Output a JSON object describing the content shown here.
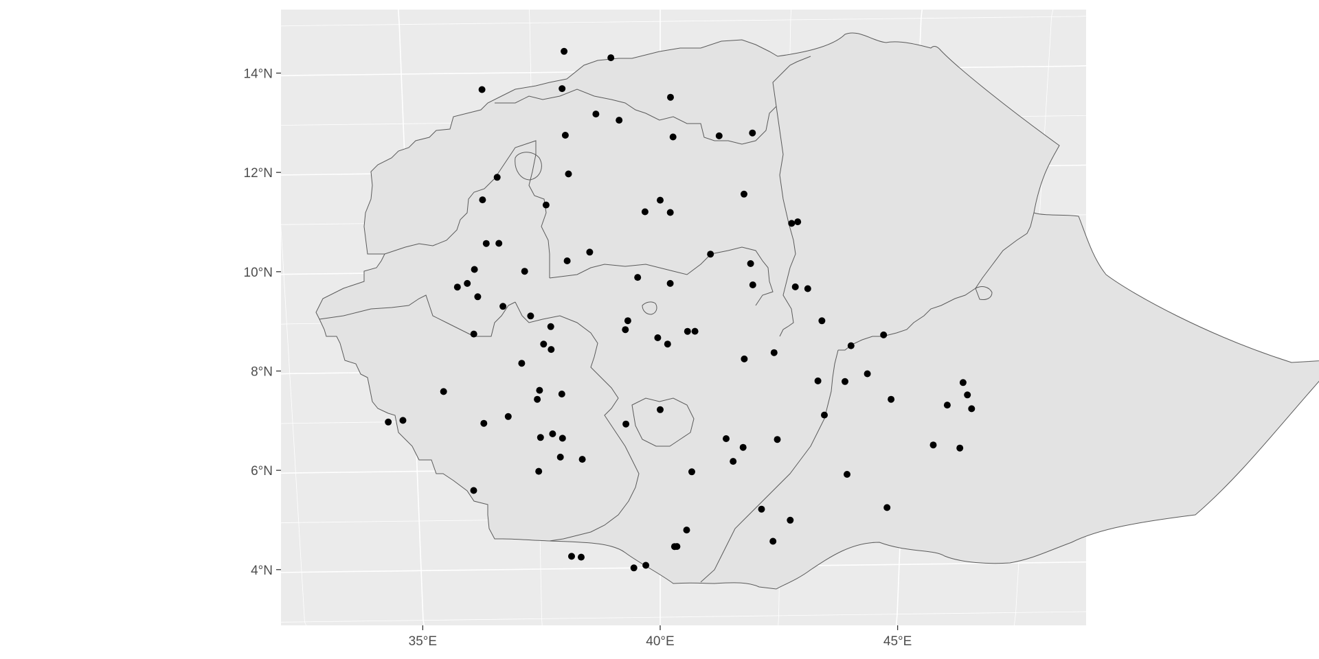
{
  "map": {
    "region": "Ethiopia",
    "projection": "conic, graticule curved",
    "panel_background": "#ebebeb",
    "grid_color": "#ffffff",
    "land_fill": "#e3e3e3",
    "border_color": "#595959",
    "point_color": "#000000",
    "grid_lines": true,
    "legend": "none"
  },
  "axes": {
    "x_ticks": [
      {
        "value": 35,
        "label": "35°E"
      },
      {
        "value": 40,
        "label": "40°E"
      },
      {
        "value": 45,
        "label": "45°E"
      }
    ],
    "y_ticks": [
      {
        "value": 4,
        "label": "4°N"
      },
      {
        "value": 6,
        "label": "6°N"
      },
      {
        "value": 8,
        "label": "8°N"
      },
      {
        "value": 10,
        "label": "10°N"
      },
      {
        "value": 12,
        "label": "12°N"
      },
      {
        "value": 14,
        "label": "14°N"
      }
    ],
    "xlim": [
      32.3,
      48.5
    ],
    "ylim": [
      3.0,
      15.3
    ]
  },
  "chart_data": {
    "type": "scatter",
    "title": "",
    "xlabel": "",
    "ylabel": "",
    "points": [
      {
        "lon": 38.15,
        "lat": 14.42
      },
      {
        "lon": 39.05,
        "lat": 14.28
      },
      {
        "lon": 36.55,
        "lat": 13.67
      },
      {
        "lon": 38.1,
        "lat": 13.67
      },
      {
        "lon": 40.2,
        "lat": 13.47
      },
      {
        "lon": 38.75,
        "lat": 13.15
      },
      {
        "lon": 39.2,
        "lat": 13.02
      },
      {
        "lon": 38.15,
        "lat": 12.73
      },
      {
        "lon": 40.25,
        "lat": 12.67
      },
      {
        "lon": 41.15,
        "lat": 12.68
      },
      {
        "lon": 41.8,
        "lat": 12.73
      },
      {
        "lon": 36.8,
        "lat": 11.9
      },
      {
        "lon": 38.2,
        "lat": 11.95
      },
      {
        "lon": 41.65,
        "lat": 11.5
      },
      {
        "lon": 36.5,
        "lat": 11.45
      },
      {
        "lon": 37.75,
        "lat": 11.33
      },
      {
        "lon": 40.0,
        "lat": 11.4
      },
      {
        "lon": 39.7,
        "lat": 11.17
      },
      {
        "lon": 40.2,
        "lat": 11.15
      },
      {
        "lon": 42.6,
        "lat": 10.9
      },
      {
        "lon": 42.72,
        "lat": 10.93
      },
      {
        "lon": 36.55,
        "lat": 10.57
      },
      {
        "lon": 36.8,
        "lat": 10.57
      },
      {
        "lon": 38.6,
        "lat": 10.37
      },
      {
        "lon": 41.0,
        "lat": 10.3
      },
      {
        "lon": 38.15,
        "lat": 10.2
      },
      {
        "lon": 41.8,
        "lat": 10.1
      },
      {
        "lon": 36.3,
        "lat": 10.05
      },
      {
        "lon": 37.3,
        "lat": 10.0
      },
      {
        "lon": 39.55,
        "lat": 9.85
      },
      {
        "lon": 36.15,
        "lat": 9.77
      },
      {
        "lon": 35.95,
        "lat": 9.7
      },
      {
        "lon": 40.2,
        "lat": 9.72
      },
      {
        "lon": 41.85,
        "lat": 9.67
      },
      {
        "lon": 42.7,
        "lat": 9.62
      },
      {
        "lon": 42.95,
        "lat": 9.58
      },
      {
        "lon": 36.35,
        "lat": 9.5
      },
      {
        "lon": 36.85,
        "lat": 9.3
      },
      {
        "lon": 37.4,
        "lat": 9.1
      },
      {
        "lon": 39.35,
        "lat": 8.98
      },
      {
        "lon": 43.25,
        "lat": 8.93
      },
      {
        "lon": 37.8,
        "lat": 8.88
      },
      {
        "lon": 39.3,
        "lat": 8.8
      },
      {
        "lon": 36.25,
        "lat": 8.75
      },
      {
        "lon": 40.55,
        "lat": 8.75
      },
      {
        "lon": 40.7,
        "lat": 8.75
      },
      {
        "lon": 39.95,
        "lat": 8.63
      },
      {
        "lon": 44.5,
        "lat": 8.63
      },
      {
        "lon": 37.65,
        "lat": 8.53
      },
      {
        "lon": 40.15,
        "lat": 8.5
      },
      {
        "lon": 37.8,
        "lat": 8.42
      },
      {
        "lon": 43.85,
        "lat": 8.42
      },
      {
        "lon": 42.3,
        "lat": 8.3
      },
      {
        "lon": 37.2,
        "lat": 8.15
      },
      {
        "lon": 41.7,
        "lat": 8.18
      },
      {
        "lon": 44.2,
        "lat": 7.85
      },
      {
        "lon": 43.2,
        "lat": 7.72
      },
      {
        "lon": 43.75,
        "lat": 7.7
      },
      {
        "lon": 46.15,
        "lat": 7.65
      },
      {
        "lon": 35.6,
        "lat": 7.6
      },
      {
        "lon": 37.55,
        "lat": 7.6
      },
      {
        "lon": 38.0,
        "lat": 7.52
      },
      {
        "lon": 37.5,
        "lat": 7.42
      },
      {
        "lon": 46.25,
        "lat": 7.4
      },
      {
        "lon": 44.7,
        "lat": 7.33
      },
      {
        "lon": 45.85,
        "lat": 7.2
      },
      {
        "lon": 40.0,
        "lat": 7.18
      },
      {
        "lon": 46.35,
        "lat": 7.12
      },
      {
        "lon": 36.9,
        "lat": 7.08
      },
      {
        "lon": 43.35,
        "lat": 7.03
      },
      {
        "lon": 34.75,
        "lat": 7.03
      },
      {
        "lon": 34.45,
        "lat": 7.0
      },
      {
        "lon": 36.4,
        "lat": 6.95
      },
      {
        "lon": 39.3,
        "lat": 6.9
      },
      {
        "lon": 37.8,
        "lat": 6.72
      },
      {
        "lon": 37.55,
        "lat": 6.65
      },
      {
        "lon": 38.0,
        "lat": 6.63
      },
      {
        "lon": 41.35,
        "lat": 6.58
      },
      {
        "lon": 42.4,
        "lat": 6.55
      },
      {
        "lon": 41.7,
        "lat": 6.4
      },
      {
        "lon": 45.6,
        "lat": 6.4
      },
      {
        "lon": 46.15,
        "lat": 6.33
      },
      {
        "lon": 37.95,
        "lat": 6.25
      },
      {
        "lon": 38.4,
        "lat": 6.2
      },
      {
        "lon": 41.5,
        "lat": 6.12
      },
      {
        "lon": 37.5,
        "lat": 5.97
      },
      {
        "lon": 40.65,
        "lat": 5.92
      },
      {
        "lon": 43.85,
        "lat": 5.83
      },
      {
        "lon": 36.15,
        "lat": 5.6
      },
      {
        "lon": 42.1,
        "lat": 5.15
      },
      {
        "lon": 44.7,
        "lat": 5.15
      },
      {
        "lon": 42.7,
        "lat": 4.92
      },
      {
        "lon": 40.55,
        "lat": 4.75
      },
      {
        "lon": 42.35,
        "lat": 4.5
      },
      {
        "lon": 40.3,
        "lat": 4.42
      },
      {
        "lon": 40.35,
        "lat": 4.42
      },
      {
        "lon": 38.15,
        "lat": 4.25
      },
      {
        "lon": 38.35,
        "lat": 4.23
      },
      {
        "lon": 39.7,
        "lat": 4.05
      },
      {
        "lon": 39.45,
        "lat": 4.0
      }
    ]
  }
}
